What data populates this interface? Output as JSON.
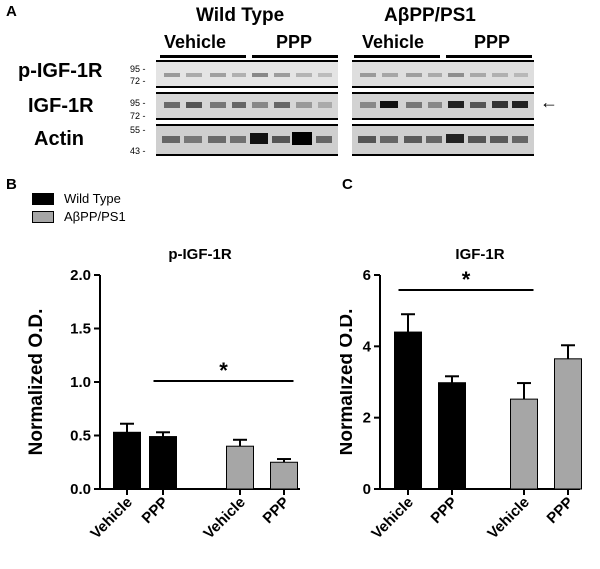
{
  "panel_a": {
    "letter": "A",
    "groups": [
      {
        "title": "Wild Type",
        "conditions": [
          "Vehicle",
          "PPP"
        ]
      },
      {
        "title": "AβPP/PS1",
        "conditions": [
          "Vehicle",
          "PPP"
        ]
      }
    ],
    "rows": [
      {
        "label": "p-IGF-1R",
        "markers": [
          "95 -",
          "72 -"
        ]
      },
      {
        "label": "IGF-1R",
        "markers": [
          "95 -",
          "72 -"
        ]
      },
      {
        "label": "Actin",
        "markers": [
          "55 -",
          "43 -"
        ]
      }
    ],
    "arrow": "←"
  },
  "panel_b_letter": "B",
  "panel_c_letter": "C",
  "legend": [
    {
      "label": "Wild Type",
      "color": "#000000"
    },
    {
      "label": "AβPP/PS1",
      "color": "#a6a6a6"
    }
  ],
  "chart_data": [
    {
      "type": "bar",
      "title": "p-IGF-1R",
      "ylabel": "Normalized O.D.",
      "categories": [
        "Vehicle",
        "PPP",
        "Vehicle",
        "PPP"
      ],
      "groups": [
        "Wild Type",
        "Wild Type",
        "AβPP/PS1",
        "AβPP/PS1"
      ],
      "values": [
        0.53,
        0.49,
        0.4,
        0.25
      ],
      "errors": [
        0.08,
        0.04,
        0.06,
        0.03
      ],
      "colors": [
        "#000000",
        "#000000",
        "#a6a6a6",
        "#a6a6a6"
      ],
      "ylim": [
        0,
        2.0
      ],
      "yticks": [
        "0.0",
        "0.5",
        "1.0",
        "1.5",
        "2.0"
      ],
      "significance": {
        "label": "*",
        "from": 1,
        "to": 3
      }
    },
    {
      "type": "bar",
      "title": "IGF-1R",
      "ylabel": "Normalized O.D.",
      "categories": [
        "Vehicle",
        "PPP",
        "Vehicle",
        "PPP"
      ],
      "groups": [
        "Wild Type",
        "Wild Type",
        "AβPP/PS1",
        "AβPP/PS1"
      ],
      "values": [
        4.4,
        2.98,
        2.52,
        3.65
      ],
      "errors": [
        0.5,
        0.18,
        0.45,
        0.38
      ],
      "colors": [
        "#000000",
        "#000000",
        "#a6a6a6",
        "#a6a6a6"
      ],
      "ylim": [
        0,
        6
      ],
      "yticks": [
        "0",
        "2",
        "4",
        "6"
      ],
      "significance": {
        "label": "*",
        "from": 0,
        "to": 2
      }
    }
  ]
}
